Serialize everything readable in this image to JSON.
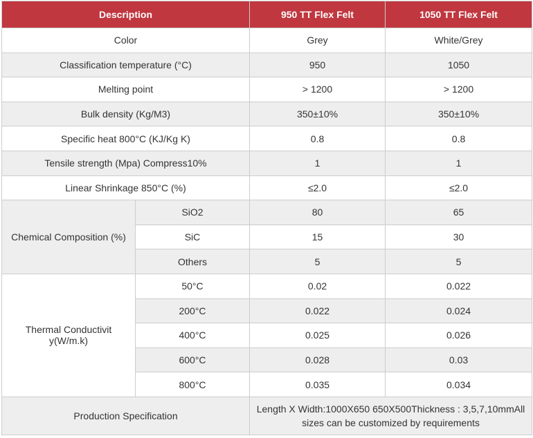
{
  "headers": [
    "Description",
    "950 TT Flex Felt",
    "1050 TT Flex Felt"
  ],
  "rows": [
    {
      "label": "Color",
      "v950": "Grey",
      "v1050": "White/Grey"
    },
    {
      "label": "Classification temperature (°C)",
      "v950": "950",
      "v1050": "1050"
    },
    {
      "label": "Melting point",
      "v950": "> 1200",
      "v1050": "> 1200"
    },
    {
      "label": "Bulk density (Kg/M3)",
      "v950": "350±10%",
      "v1050": "350±10%"
    },
    {
      "label": "Specific heat 800°C (KJ/Kg K)",
      "v950": "0.8",
      "v1050": "0.8"
    },
    {
      "label": "Tensile strength (Mpa) Compress10%",
      "v950": "1",
      "v1050": "1"
    },
    {
      "label": "Linear Shrinkage 850°C (%)",
      "v950": "≤2.0",
      "v1050": "≤2.0"
    }
  ],
  "chemical": {
    "label": "Chemical Composition (%)",
    "items": [
      {
        "name": "SiO2",
        "v950": "80",
        "v1050": "65"
      },
      {
        "name": "SiC",
        "v950": "15",
        "v1050": "30"
      },
      {
        "name": "Others",
        "v950": "5",
        "v1050": "5"
      }
    ]
  },
  "thermal": {
    "label": "Thermal Conductivit y(W/m.k)",
    "items": [
      {
        "temp": "50°C",
        "v950": "0.02",
        "v1050": "0.022"
      },
      {
        "temp": "200°C",
        "v950": "0.022",
        "v1050": "0.024"
      },
      {
        "temp": "400°C",
        "v950": "0.025",
        "v1050": "0.026"
      },
      {
        "temp": "600°C",
        "v950": "0.028",
        "v1050": "0.03"
      },
      {
        "temp": "800°C",
        "v950": "0.035",
        "v1050": "0.034"
      }
    ]
  },
  "production": {
    "label": "Production Specification",
    "line1": "Length X Width:1000X650 650X500Thickness : 3,5,7,10mmAll",
    "line2": "sizes can be customized by requirements"
  },
  "colors": {
    "header_bg": "#c0373f",
    "stripe_bg": "#eeeeee",
    "border": "#cccccc"
  }
}
